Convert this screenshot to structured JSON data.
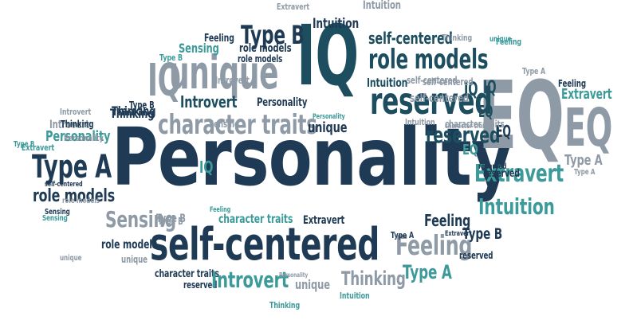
{
  "colors": {
    "navy": "#1f3a54",
    "teal": "#3d9a9a",
    "gray": "#8e9aa6",
    "darkteal": "#1c4e60"
  },
  "words": [
    "Personality",
    "IQ",
    "EQ",
    "EQ",
    "unique",
    "IQ",
    "self-centered",
    "reserved",
    "role models",
    "character traits",
    "Type B",
    "Type A",
    "Introvert",
    "Extravert",
    "Intuition",
    "Sensing",
    "Thinking",
    "Feeling",
    "Personality",
    "role models",
    "self-centered",
    "Intuition",
    "Type B",
    "Feeling",
    "Extravert",
    "Thinking",
    "role models",
    "unique",
    "self-centered",
    "Thinking",
    "Feeling",
    "role models",
    "Type B",
    "Sensing",
    "IQ",
    "Extravert",
    "Introvert",
    "reserved",
    "character traits",
    "Personality",
    "EQ",
    "Type A",
    "unique",
    "Intuition",
    "Type A",
    "Extravert",
    "Intuition",
    "Thinking",
    "Introvert",
    "character traits",
    "Personality",
    "reserved",
    "Sensing",
    "Feeling",
    "Type A",
    "IQ",
    "unique",
    "Type B",
    "self-centered",
    "Introvert",
    "Sensing",
    "Type B",
    "reserved",
    "Feeling",
    "Extravert",
    "EQ",
    "role models",
    "character traits",
    "Type B",
    "Intuition",
    "Type A",
    "Extravert",
    "Sensing",
    "self-centered",
    "Thinking",
    "role models",
    "unique",
    "IQ",
    "EQ",
    "reserved",
    "Introvert",
    "Thinking",
    "Personality",
    "Intuition",
    "character traits",
    "Type A",
    "unique",
    "reserved",
    "Personality",
    "Feeling",
    "Type B",
    "self-centered"
  ]
}
